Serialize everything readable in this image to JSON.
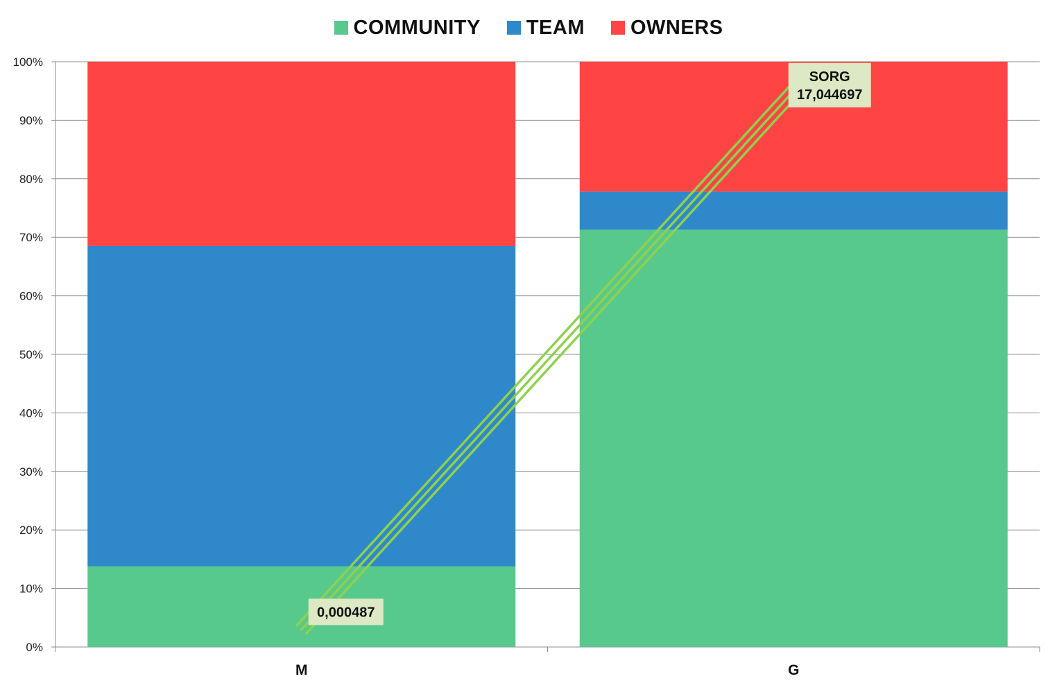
{
  "chart_data": {
    "type": "bar",
    "stacked": true,
    "normalized": true,
    "categories": [
      "M",
      "G"
    ],
    "series": [
      {
        "name": "COMMUNITY",
        "color": "#57c98c",
        "values": [
          13.8,
          71.3
        ]
      },
      {
        "name": "TEAM",
        "color": "#2e88c9",
        "values": [
          54.7,
          6.5
        ]
      },
      {
        "name": "OWNERS",
        "color": "#ff4444",
        "values": [
          31.5,
          22.2
        ]
      }
    ],
    "y_ticks": [
      "0%",
      "10%",
      "20%",
      "30%",
      "40%",
      "50%",
      "60%",
      "70%",
      "80%",
      "90%",
      "100%"
    ],
    "ylim": [
      0,
      100
    ],
    "grid": true,
    "legend_position": "top-center",
    "trend_line": {
      "color": "#8fd14f",
      "from": {
        "category": "M",
        "y": 3
      },
      "to": {
        "category": "G",
        "y": 95
      }
    },
    "annotations": [
      {
        "lines": [
          "0,000487"
        ],
        "category": "M",
        "y": 6
      },
      {
        "lines": [
          "SORG",
          "17,044697"
        ],
        "category": "G",
        "y": 96
      }
    ]
  }
}
